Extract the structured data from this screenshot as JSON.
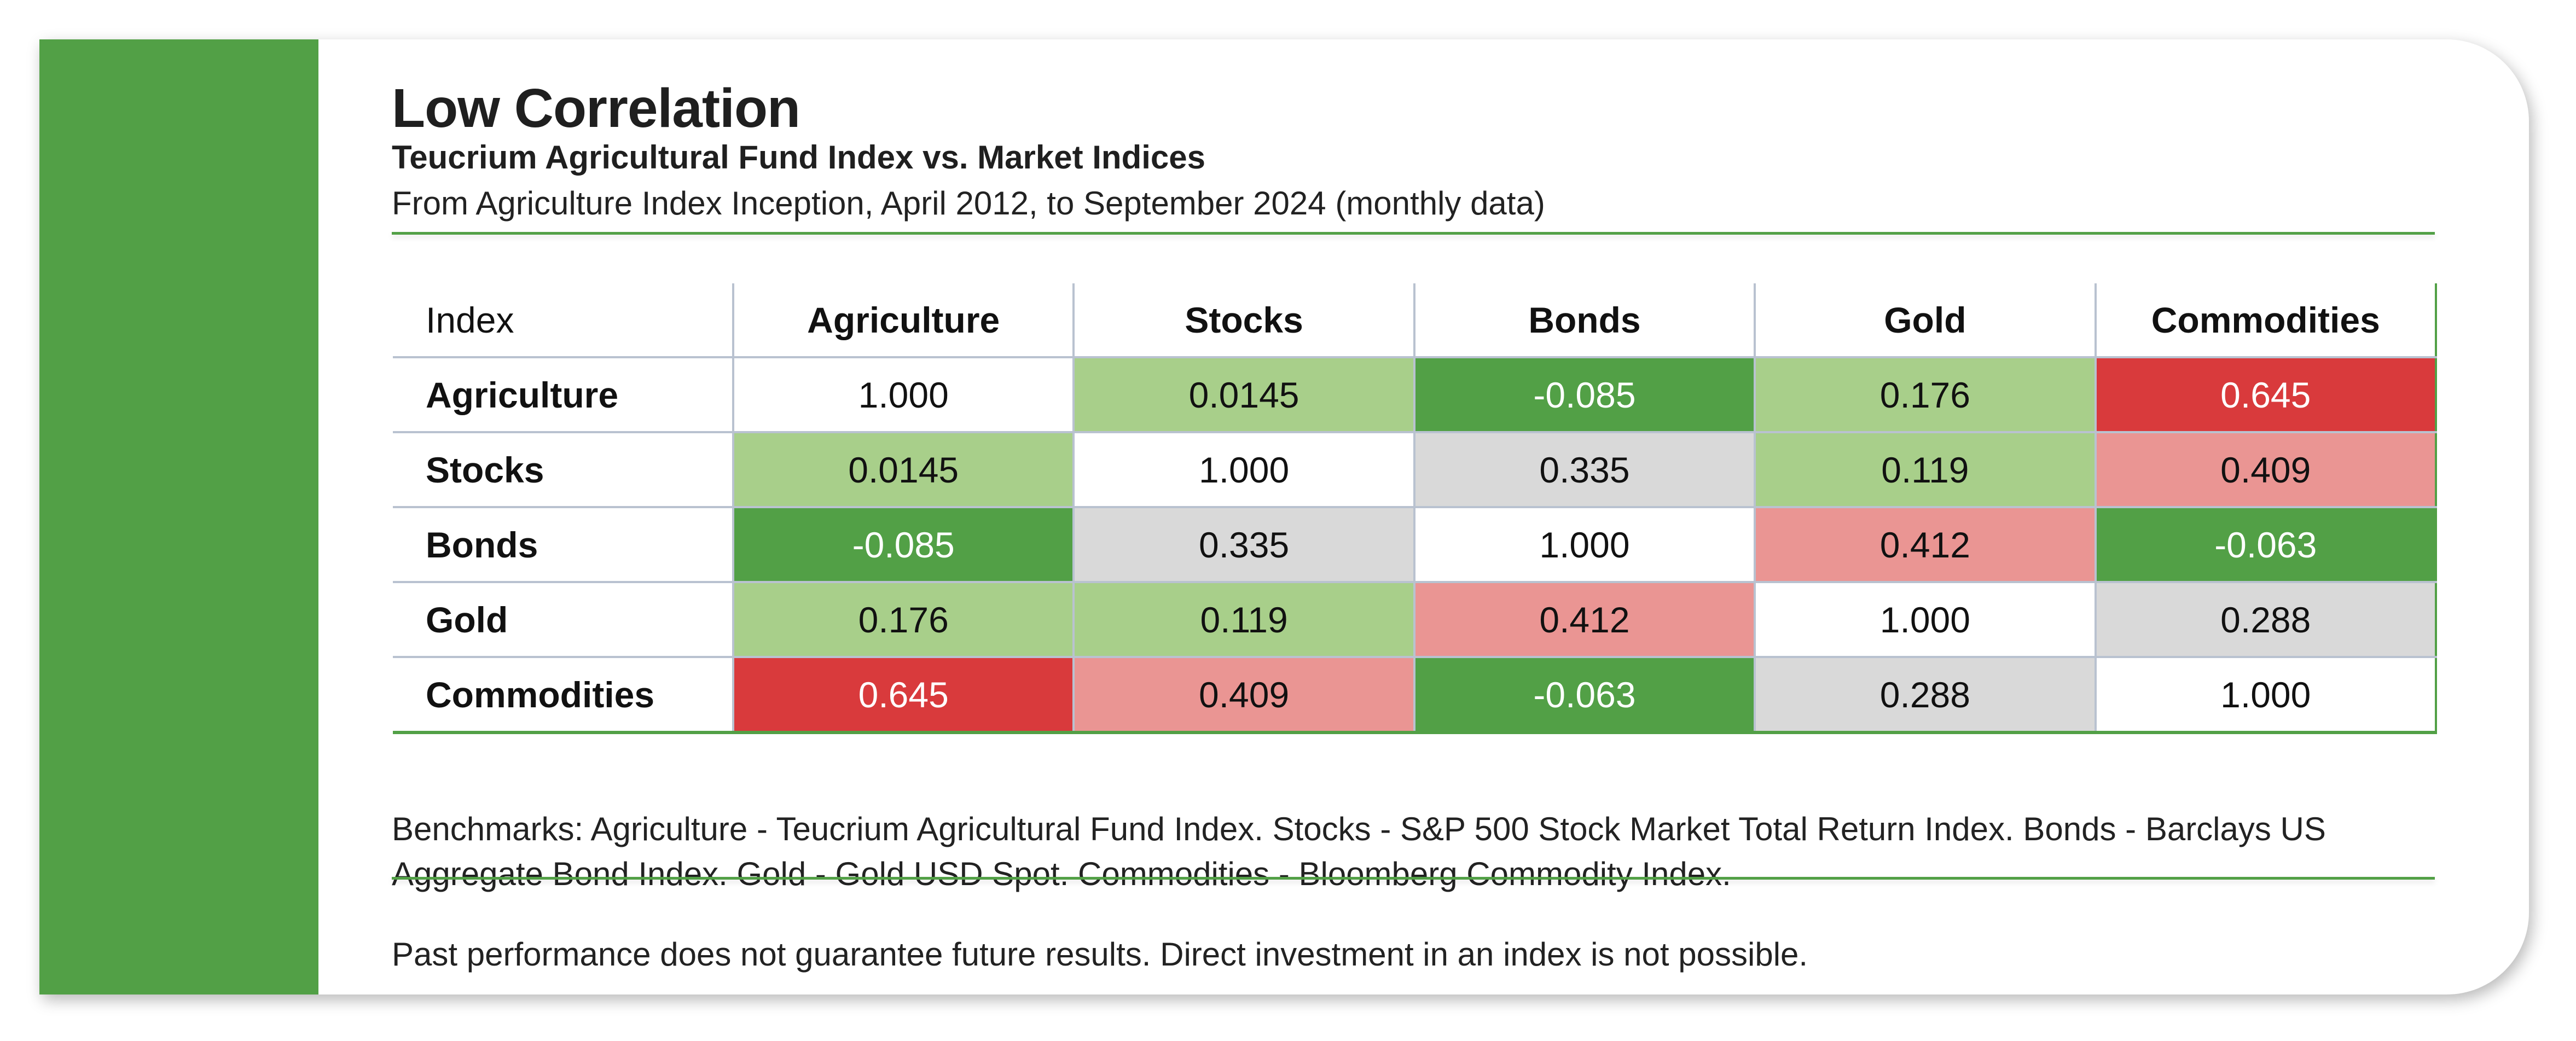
{
  "header": {
    "title": "Low Correlation",
    "subtitle": "Teucrium Agricultural Fund Index vs. Market Indices",
    "period": "From Agriculture Index Inception, April 2012, to September 2024 (monthly data)"
  },
  "colors": {
    "brand_green": "#52a046",
    "dark_green": "#52a046",
    "light_green": "#a8cf8a",
    "neutral_gray": "#d9d9d9",
    "light_red": "#ea9593",
    "dark_red": "#d93a3c",
    "diagonal_white": "#ffffff"
  },
  "chart_data": {
    "type": "heatmap",
    "corner_label": "Index",
    "columns": [
      "Agriculture",
      "Stocks",
      "Bonds",
      "Gold",
      "Commodities"
    ],
    "rows": [
      "Agriculture",
      "Stocks",
      "Bonds",
      "Gold",
      "Commodities"
    ],
    "values": [
      [
        "1.000",
        "0.0145",
        "-0.085",
        "0.176",
        "0.645"
      ],
      [
        "0.0145",
        "1.000",
        "0.335",
        "0.119",
        "0.409"
      ],
      [
        "-0.085",
        "0.335",
        "1.000",
        "0.412",
        "-0.063"
      ],
      [
        "0.176",
        "0.119",
        "0.412",
        "1.000",
        "0.288"
      ],
      [
        "0.645",
        "0.409",
        "-0.063",
        "0.288",
        "1.000"
      ]
    ],
    "cell_colors": [
      [
        "diagonal_white",
        "light_green",
        "dark_green",
        "light_green",
        "dark_red"
      ],
      [
        "light_green",
        "diagonal_white",
        "neutral_gray",
        "light_green",
        "light_red"
      ],
      [
        "dark_green",
        "neutral_gray",
        "diagonal_white",
        "light_red",
        "dark_green"
      ],
      [
        "light_green",
        "light_green",
        "light_red",
        "diagonal_white",
        "neutral_gray"
      ],
      [
        "dark_red",
        "light_red",
        "dark_green",
        "neutral_gray",
        "diagonal_white"
      ]
    ]
  },
  "footer": {
    "benchmarks": "Benchmarks: Agriculture - Teucrium Agricultural Fund Index. Stocks - S&P 500 Stock Market Total Return Index. Bonds - Barclays US Aggregate Bond Index. Gold - Gold USD Spot. Commodities - Bloomberg Commodity Index.",
    "disclaimer": "Past performance does not guarantee future results. Direct investment in an index is not possible."
  }
}
